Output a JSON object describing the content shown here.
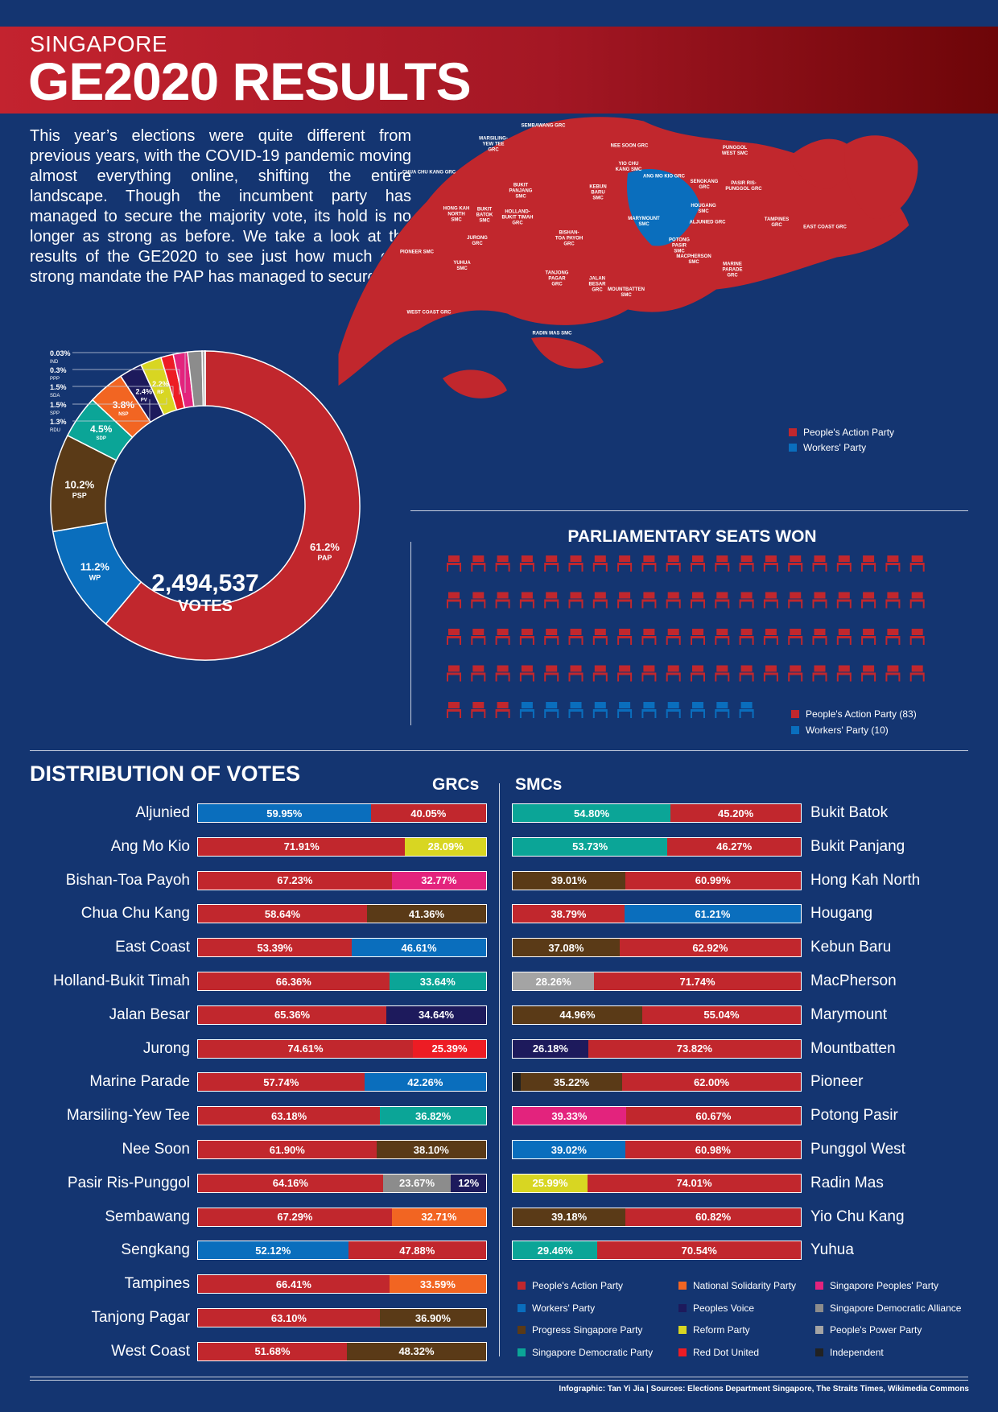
{
  "header": {
    "subtitle": "SINGAPORE",
    "title": "GE2020 RESULTS"
  },
  "intro": "This year’s elections were quite different from previous years, with the COVID-19 pandemic moving almost everything online, shifting the entire landscape. Though the incumbent party has managed to secure the majority vote, its hold is no longer as strong as before. We take a look at the results of the GE2020 to see just how much of a strong mandate the PAP has managed to secure.",
  "colors": {
    "PAP": "#c1272d",
    "WP": "#0a6ebd",
    "PSP": "#5a3a17",
    "SDP": "#0ba597",
    "NSP": "#f26522",
    "PV": "#1d1a5c",
    "RP": "#d8d622",
    "RDU": "#ed1c24",
    "SPP": "#e3237d",
    "SDA": "#8c8c8c",
    "PPP": "#a4a4a4",
    "IND": "#222222"
  },
  "map": {
    "labels": [
      {
        "text": "SEMBAWANG GRC"
      },
      {
        "text": "MARSILING-\nYEW TEE\nGRC"
      },
      {
        "text": "NEE SOON GRC"
      },
      {
        "text": "PUNGGOL\nWEST SMC"
      },
      {
        "text": "CHUA CHU KANG GRC"
      },
      {
        "text": "YIO CHU\nKANG SMC"
      },
      {
        "text": "ANG MO KIO GRC"
      },
      {
        "text": "SENGKANG\nGRC"
      },
      {
        "text": "PASIR RIS-\nPUNGGOL GRC"
      },
      {
        "text": "BUKIT\nPANJANG\nSMC"
      },
      {
        "text": "KEBUN\nBARU\nSMC"
      },
      {
        "text": "HOUGANG\nSMC"
      },
      {
        "text": "HONG KAH\nNORTH\nSMC"
      },
      {
        "text": "BUKIT\nBATOK\nSMC"
      },
      {
        "text": "HOLLAND-\nBUKIT TIMAH\nGRC"
      },
      {
        "text": "MARYMOUNT\nSMC"
      },
      {
        "text": "ALJUNIED GRC"
      },
      {
        "text": "TAMPINES\nGRC"
      },
      {
        "text": "EAST COAST GRC"
      },
      {
        "text": "BISHAN-\nTOA PAYOH\nGRC"
      },
      {
        "text": "JURONG\nGRC"
      },
      {
        "text": "POTONG\nPASIR\nSMC"
      },
      {
        "text": "PIONEER SMC"
      },
      {
        "text": "MACPHERSON\nSMC"
      },
      {
        "text": "YUHUA\nSMC"
      },
      {
        "text": "MARINE\nPARADE\nGRC"
      },
      {
        "text": "TANJONG\nPAGAR\nGRC"
      },
      {
        "text": "JALAN\nBESAR\nGRC"
      },
      {
        "text": "MOUNTBATTEN\nSMC"
      },
      {
        "text": "WEST COAST GRC"
      },
      {
        "text": "RADIN MAS SMC"
      }
    ],
    "legend": [
      {
        "label": "People's Action Party",
        "color": "#c1272d"
      },
      {
        "label": "Workers' Party",
        "color": "#0a6ebd"
      }
    ]
  },
  "donut": {
    "total": "2,494,537",
    "total_label": "VOTES",
    "slices": [
      {
        "party": "PAP",
        "value": 61.2,
        "pct": "61.2%",
        "color": "#c1272d"
      },
      {
        "party": "WP",
        "value": 11.2,
        "pct": "11.2%",
        "color": "#0a6ebd"
      },
      {
        "party": "PSP",
        "value": 10.2,
        "pct": "10.2%",
        "color": "#5a3a17"
      },
      {
        "party": "SDP",
        "value": 4.5,
        "pct": "4.5%",
        "color": "#0ba597"
      },
      {
        "party": "NSP",
        "value": 3.8,
        "pct": "3.8%",
        "color": "#f26522"
      },
      {
        "party": "PV",
        "value": 2.4,
        "pct": "2.4%",
        "color": "#1d1a5c"
      },
      {
        "party": "RP",
        "value": 2.2,
        "pct": "2.2%",
        "color": "#d8d622"
      },
      {
        "party": "RDU",
        "value": 1.3,
        "pct": "1.3%",
        "color": "#ed1c24"
      },
      {
        "party": "SPP",
        "value": 1.5,
        "pct": "1.5%",
        "color": "#e3237d"
      },
      {
        "party": "SDA",
        "value": 1.5,
        "pct": "1.5%",
        "color": "#8c8c8c"
      },
      {
        "party": "PPP",
        "value": 0.3,
        "pct": "0.3%",
        "color": "#a4a4a4"
      },
      {
        "party": "IND",
        "value": 0.03,
        "pct": "0.03%",
        "color": "#222222"
      }
    ],
    "callouts": [
      {
        "pct": "0.03%",
        "party": "IND"
      },
      {
        "pct": "0.3%",
        "party": "PPP"
      },
      {
        "pct": "1.5%",
        "party": "SDA"
      },
      {
        "pct": "1.5%",
        "party": "SPP"
      },
      {
        "pct": "1.3%",
        "party": "RDU"
      }
    ]
  },
  "seats": {
    "title": "PARLIAMENTARY SEATS WON",
    "pap": 83,
    "wp": 10,
    "legend": [
      {
        "label": "People's Action Party (83)",
        "color": "#c1272d"
      },
      {
        "label": "Workers' Party (10)",
        "color": "#0a6ebd"
      }
    ]
  },
  "distribution": {
    "title": "DISTRIBUTION OF VOTES",
    "grc_title": "GRCs",
    "smc_title": "SMCs",
    "grcs": [
      {
        "name": "Aljunied",
        "segs": [
          {
            "p": "WP",
            "v": 59.95,
            "t": "59.95%"
          },
          {
            "p": "PAP",
            "v": 40.05,
            "t": "40.05%"
          }
        ]
      },
      {
        "name": "Ang Mo Kio",
        "segs": [
          {
            "p": "PAP",
            "v": 71.91,
            "t": "71.91%"
          },
          {
            "p": "RP",
            "v": 28.09,
            "t": "28.09%"
          }
        ]
      },
      {
        "name": "Bishan-Toa Payoh",
        "segs": [
          {
            "p": "PAP",
            "v": 67.23,
            "t": "67.23%"
          },
          {
            "p": "SPP",
            "v": 32.77,
            "t": "32.77%"
          }
        ]
      },
      {
        "name": "Chua Chu Kang",
        "segs": [
          {
            "p": "PAP",
            "v": 58.64,
            "t": "58.64%"
          },
          {
            "p": "PSP",
            "v": 41.36,
            "t": "41.36%"
          }
        ]
      },
      {
        "name": "East Coast",
        "segs": [
          {
            "p": "PAP",
            "v": 53.39,
            "t": "53.39%"
          },
          {
            "p": "WP",
            "v": 46.61,
            "t": "46.61%"
          }
        ]
      },
      {
        "name": "Holland-Bukit Timah",
        "segs": [
          {
            "p": "PAP",
            "v": 66.36,
            "t": "66.36%"
          },
          {
            "p": "SDP",
            "v": 33.64,
            "t": "33.64%"
          }
        ]
      },
      {
        "name": "Jalan Besar",
        "segs": [
          {
            "p": "PAP",
            "v": 65.36,
            "t": "65.36%"
          },
          {
            "p": "PV",
            "v": 34.64,
            "t": "34.64%"
          }
        ]
      },
      {
        "name": "Jurong",
        "segs": [
          {
            "p": "PAP",
            "v": 74.61,
            "t": "74.61%"
          },
          {
            "p": "RDU",
            "v": 25.39,
            "t": "25.39%"
          }
        ]
      },
      {
        "name": "Marine Parade",
        "segs": [
          {
            "p": "PAP",
            "v": 57.74,
            "t": "57.74%"
          },
          {
            "p": "WP",
            "v": 42.26,
            "t": "42.26%"
          }
        ]
      },
      {
        "name": "Marsiling-Yew Tee",
        "segs": [
          {
            "p": "PAP",
            "v": 63.18,
            "t": "63.18%"
          },
          {
            "p": "SDP",
            "v": 36.82,
            "t": "36.82%"
          }
        ]
      },
      {
        "name": "Nee Soon",
        "segs": [
          {
            "p": "PAP",
            "v": 61.9,
            "t": "61.90%"
          },
          {
            "p": "PSP",
            "v": 38.1,
            "t": "38.10%"
          }
        ]
      },
      {
        "name": "Pasir Ris-Punggol",
        "segs": [
          {
            "p": "PAP",
            "v": 64.16,
            "t": "64.16%"
          },
          {
            "p": "SDA",
            "v": 23.67,
            "t": "23.67%"
          },
          {
            "p": "PV",
            "v": 12.17,
            "t": "12%"
          }
        ]
      },
      {
        "name": "Sembawang",
        "segs": [
          {
            "p": "PAP",
            "v": 67.29,
            "t": "67.29%"
          },
          {
            "p": "NSP",
            "v": 32.71,
            "t": "32.71%"
          }
        ]
      },
      {
        "name": "Sengkang",
        "segs": [
          {
            "p": "WP",
            "v": 52.12,
            "t": "52.12%"
          },
          {
            "p": "PAP",
            "v": 47.88,
            "t": "47.88%"
          }
        ]
      },
      {
        "name": "Tampines",
        "segs": [
          {
            "p": "PAP",
            "v": 66.41,
            "t": "66.41%"
          },
          {
            "p": "NSP",
            "v": 33.59,
            "t": "33.59%"
          }
        ]
      },
      {
        "name": "Tanjong Pagar",
        "segs": [
          {
            "p": "PAP",
            "v": 63.1,
            "t": "63.10%"
          },
          {
            "p": "PSP",
            "v": 36.9,
            "t": "36.90%"
          }
        ]
      },
      {
        "name": "West Coast",
        "segs": [
          {
            "p": "PAP",
            "v": 51.68,
            "t": "51.68%"
          },
          {
            "p": "PSP",
            "v": 48.32,
            "t": "48.32%"
          }
        ]
      }
    ],
    "smcs": [
      {
        "name": "Bukit Batok",
        "segs": [
          {
            "p": "SDP",
            "v": 54.8,
            "t": "54.80%"
          },
          {
            "p": "PAP",
            "v": 45.2,
            "t": "45.20%"
          }
        ]
      },
      {
        "name": "Bukit Panjang",
        "segs": [
          {
            "p": "SDP",
            "v": 53.73,
            "t": "53.73%"
          },
          {
            "p": "PAP",
            "v": 46.27,
            "t": "46.27%"
          }
        ]
      },
      {
        "name": "Hong Kah North",
        "segs": [
          {
            "p": "PSP",
            "v": 39.01,
            "t": "39.01%"
          },
          {
            "p": "PAP",
            "v": 60.99,
            "t": "60.99%"
          }
        ]
      },
      {
        "name": "Hougang",
        "segs": [
          {
            "p": "PAP",
            "v": 38.79,
            "t": "38.79%"
          },
          {
            "p": "WP",
            "v": 61.21,
            "t": "61.21%"
          }
        ]
      },
      {
        "name": "Kebun Baru",
        "segs": [
          {
            "p": "PSP",
            "v": 37.08,
            "t": "37.08%"
          },
          {
            "p": "PAP",
            "v": 62.92,
            "t": "62.92%"
          }
        ]
      },
      {
        "name": "MacPherson",
        "segs": [
          {
            "p": "PPP",
            "v": 28.26,
            "t": "28.26%"
          },
          {
            "p": "PAP",
            "v": 71.74,
            "t": "71.74%"
          }
        ]
      },
      {
        "name": "Marymount",
        "segs": [
          {
            "p": "PSP",
            "v": 44.96,
            "t": "44.96%"
          },
          {
            "p": "PAP",
            "v": 55.04,
            "t": "55.04%"
          }
        ]
      },
      {
        "name": "Mountbatten",
        "segs": [
          {
            "p": "PV",
            "v": 26.18,
            "t": "26.18%"
          },
          {
            "p": "PAP",
            "v": 73.82,
            "t": "73.82%"
          }
        ]
      },
      {
        "name": "Pioneer",
        "segs": [
          {
            "p": "IND",
            "v": 2.78,
            "t": ""
          },
          {
            "p": "PSP",
            "v": 35.22,
            "t": "35.22%"
          },
          {
            "p": "PAP",
            "v": 62.0,
            "t": "62.00%"
          }
        ]
      },
      {
        "name": "Potong Pasir",
        "segs": [
          {
            "p": "SPP",
            "v": 39.33,
            "t": "39.33%"
          },
          {
            "p": "PAP",
            "v": 60.67,
            "t": "60.67%"
          }
        ]
      },
      {
        "name": "Punggol West",
        "segs": [
          {
            "p": "WP",
            "v": 39.02,
            "t": "39.02%"
          },
          {
            "p": "PAP",
            "v": 60.98,
            "t": "60.98%"
          }
        ]
      },
      {
        "name": "Radin Mas",
        "segs": [
          {
            "p": "RP",
            "v": 25.99,
            "t": "25.99%"
          },
          {
            "p": "PAP",
            "v": 74.01,
            "t": "74.01%"
          }
        ]
      },
      {
        "name": "Yio Chu Kang",
        "segs": [
          {
            "p": "PSP",
            "v": 39.18,
            "t": "39.18%"
          },
          {
            "p": "PAP",
            "v": 60.82,
            "t": "60.82%"
          }
        ]
      },
      {
        "name": "Yuhua",
        "segs": [
          {
            "p": "SDP",
            "v": 29.46,
            "t": "29.46%"
          },
          {
            "p": "PAP",
            "v": 70.54,
            "t": "70.54%"
          }
        ]
      }
    ],
    "legend": [
      {
        "label": "People's Action Party",
        "p": "PAP"
      },
      {
        "label": "Workers' Party",
        "p": "WP"
      },
      {
        "label": "Progress Singapore Party",
        "p": "PSP"
      },
      {
        "label": "Singapore Democratic Party",
        "p": "SDP"
      },
      {
        "label": "National Solidarity Party",
        "p": "NSP"
      },
      {
        "label": "Peoples Voice",
        "p": "PV"
      },
      {
        "label": "Reform Party",
        "p": "RP"
      },
      {
        "label": "Red Dot United",
        "p": "RDU"
      },
      {
        "label": "Singapore Peoples' Party",
        "p": "SPP"
      },
      {
        "label": "Singapore Democratic Alliance",
        "p": "SDA"
      },
      {
        "label": "People's Power Party",
        "p": "PPP"
      },
      {
        "label": "Independent",
        "p": "IND"
      }
    ]
  },
  "footer": "Infographic: Tan Yi Jia  |  Sources: Elections Department Singapore, The Straits Times, Wikimedia Commons",
  "chart_data": [
    {
      "type": "pie",
      "title": "",
      "categories": [
        "PAP",
        "WP",
        "PSP",
        "SDP",
        "NSP",
        "PV",
        "RP",
        "RDU",
        "SPP",
        "SDA",
        "PPP",
        "IND"
      ],
      "values": [
        61.2,
        11.2,
        10.2,
        4.5,
        3.8,
        2.4,
        2.2,
        1.3,
        1.5,
        1.5,
        0.3,
        0.03
      ],
      "center_label": "2,494,537 VOTES"
    },
    {
      "type": "bar",
      "title": "PARLIAMENTARY SEATS WON",
      "categories": [
        "People's Action Party",
        "Workers' Party"
      ],
      "values": [
        83,
        10
      ]
    }
  ]
}
